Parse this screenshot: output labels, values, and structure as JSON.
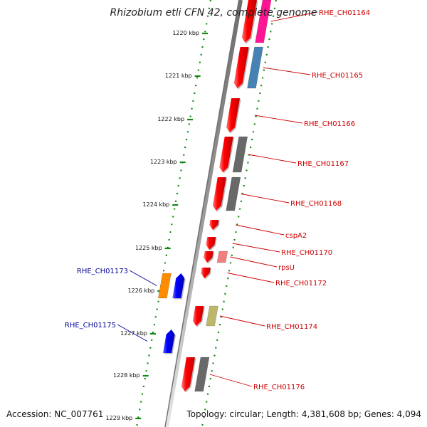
{
  "title": "Rhizobium etli CFN 42, complete genome",
  "footer": {
    "accession": "Accession: NC_007761",
    "topology": "Topology: circular; Length: 4,381,608 bp; Genes: 4,094"
  },
  "colors": {
    "forward_gene": "#ff0000",
    "backward_gene": "#0000ff",
    "label_right": "#cc0000",
    "label_left": "#000099",
    "tick": "#118811",
    "backbone": "#888888"
  },
  "kbp_labels": [
    {
      "kbp": 1220,
      "text": "1220 kbp"
    },
    {
      "kbp": 1221,
      "text": "1221 kbp"
    },
    {
      "kbp": 1222,
      "text": "1222 kbp"
    },
    {
      "kbp": 1223,
      "text": "1223 kbp"
    },
    {
      "kbp": 1224,
      "text": "1224 kbp"
    },
    {
      "kbp": 1225,
      "text": "1225 kbp"
    },
    {
      "kbp": 1226,
      "text": "1226 kbp"
    },
    {
      "kbp": 1227,
      "text": "1227 kbp"
    },
    {
      "kbp": 1228,
      "text": "1228 kbp"
    },
    {
      "kbp": 1229,
      "text": "1229 kbp"
    }
  ],
  "genes": [
    {
      "name": "RHE_CH01164",
      "strand": "forward",
      "cog_color": "#ff1493"
    },
    {
      "name": "RHE_CH01165",
      "strand": "forward",
      "cog_color": "#4682b4"
    },
    {
      "name": "RHE_CH01166",
      "strand": "forward",
      "cog_color": ""
    },
    {
      "name": "RHE_CH01167",
      "strand": "forward",
      "cog_color": "#696969"
    },
    {
      "name": "RHE_CH01168",
      "strand": "forward",
      "cog_color": "#696969"
    },
    {
      "name": "cspA2",
      "strand": "forward",
      "cog_color": ""
    },
    {
      "name": "RHE_CH01170",
      "strand": "forward",
      "cog_color": ""
    },
    {
      "name": "rpsU",
      "strand": "forward",
      "cog_color": "#f08080"
    },
    {
      "name": "RHE_CH01172",
      "strand": "forward",
      "cog_color": ""
    },
    {
      "name": "RHE_CH01173",
      "strand": "reverse",
      "cog_color": "#ff8c00"
    },
    {
      "name": "RHE_CH01174",
      "strand": "forward",
      "cog_color": "#bdb76b"
    },
    {
      "name": "RHE_CH01175",
      "strand": "reverse",
      "cog_color": ""
    },
    {
      "name": "RHE_CH01176",
      "strand": "forward",
      "cog_color": "#696969"
    }
  ]
}
